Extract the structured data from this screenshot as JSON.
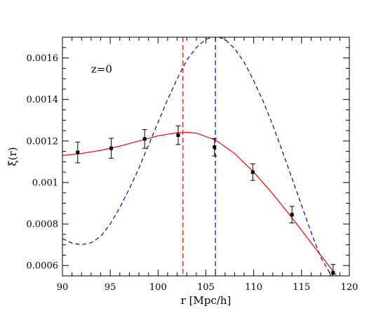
{
  "chart_data": {
    "type": "scatter",
    "title": "",
    "xlabel": "r [Mpc/h]",
    "ylabel": "ξ(r)",
    "xlim": [
      90,
      120
    ],
    "ylim": [
      0.00055,
      0.0017
    ],
    "x_ticks": [
      90,
      95,
      100,
      105,
      110,
      115,
      120
    ],
    "y_ticks": [
      0.0006,
      0.0008,
      0.001,
      0.0012,
      0.0014,
      0.0016
    ],
    "y_tick_labels": [
      "0.0006",
      "0.0008",
      "0.001",
      "0.0012",
      "0.0014",
      "0.0016"
    ],
    "grid": false,
    "annotations": [
      {
        "text": "z=0",
        "x": 93.0,
        "y": 0.00153
      }
    ],
    "vertical_lines": [
      {
        "x": 102.6,
        "color": "#ff0000",
        "style": "dashed"
      },
      {
        "x": 106.0,
        "color": "#0000cc",
        "style": "dashed"
      }
    ],
    "series": [
      {
        "type": "scatter_errorbar",
        "color": "#000000",
        "points": [
          {
            "x": 91.6,
            "y": 0.001145,
            "err": 5e-05
          },
          {
            "x": 95.1,
            "y": 0.001165,
            "err": 4.8e-05
          },
          {
            "x": 98.6,
            "y": 0.00121,
            "err": 4.5e-05
          },
          {
            "x": 102.1,
            "y": 0.001228,
            "err": 4.5e-05
          },
          {
            "x": 105.9,
            "y": 0.00117,
            "err": 4.2e-05
          },
          {
            "x": 109.9,
            "y": 0.00105,
            "err": 4e-05
          },
          {
            "x": 114.0,
            "y": 0.000845,
            "err": 4e-05
          },
          {
            "x": 118.3,
            "y": 0.000565,
            "err": 4e-05
          }
        ]
      },
      {
        "type": "line",
        "color": "#ff0000",
        "style": "solid",
        "x": [
          90,
          92,
          94,
          96,
          98,
          100,
          102,
          103,
          104,
          106,
          108,
          110,
          112,
          114,
          116,
          118,
          119
        ],
        "y": [
          0.00113,
          0.00114,
          0.001155,
          0.001175,
          0.0012,
          0.001225,
          0.00124,
          0.001242,
          0.001238,
          0.001205,
          0.00114,
          0.00105,
          0.000945,
          0.00083,
          0.00071,
          0.00059,
          0.00053
        ]
      },
      {
        "type": "line",
        "color": "#0000cc",
        "style": "dashed",
        "x": [
          90,
          91,
          92,
          93,
          94,
          95,
          96,
          97,
          98,
          99,
          100,
          101,
          102,
          103,
          104,
          105,
          106,
          107,
          108,
          109,
          110,
          111,
          112,
          113,
          114,
          115,
          116,
          117,
          118,
          119
        ],
        "y": [
          0.00073,
          0.000708,
          0.0007,
          0.00071,
          0.00074,
          0.0008,
          0.00088,
          0.00097,
          0.00107,
          0.00118,
          0.00129,
          0.0014,
          0.0015,
          0.00159,
          0.00165,
          0.00169,
          0.001705,
          0.00169,
          0.001645,
          0.00158,
          0.00149,
          0.00139,
          0.001275,
          0.00115,
          0.00102,
          0.00089,
          0.00076,
          0.00064,
          0.00056,
          0.00053
        ]
      }
    ]
  }
}
